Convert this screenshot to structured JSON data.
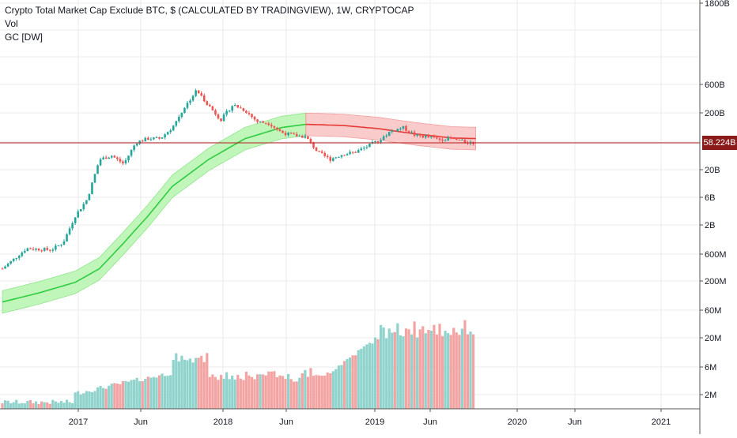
{
  "legend": {
    "title": "Crypto Total Market Cap Exclude BTC, $ (CALCULATED BY TRADINGVIEW), 1W, CRYPTOCAP",
    "vol": "Vol",
    "gc": "GC [DW]"
  },
  "price_label": "58.224B",
  "colors": {
    "up": "#26a69a",
    "down": "#ef5350",
    "vol_up": "#8fd3cc",
    "vol_down": "#f4a3a3",
    "band_green_fill": "#b7f5b0",
    "band_green_line": "#2ecc40",
    "band_red_fill": "#f9c2c2",
    "band_red_line": "#e53935",
    "price_line": "#b71c1c",
    "grid": "#ebebeb"
  },
  "chart_data": {
    "type": "candlestick",
    "title": "Crypto Total Market Cap Exclude BTC, $ (CALCULATED BY TRADINGVIEW), 1W, CRYPTOCAP",
    "y_scale": "log",
    "x_ticks": [
      "2017",
      "Jun",
      "2018",
      "Jun",
      "2019",
      "Jun",
      "2020",
      "Jun",
      "2021"
    ],
    "price_axis_ticks": [
      "1800B",
      "600B",
      "200B",
      "60B",
      "20B",
      "6B",
      "2B",
      "600M",
      "200M"
    ],
    "volume_axis_ticks": [
      "60M",
      "20M",
      "6M",
      "2M"
    ],
    "last_price": "58.224B",
    "close_series": [
      {
        "x": "2016-09",
        "y": 0.35
      },
      {
        "x": "2016-11",
        "y": 0.8
      },
      {
        "x": "2017-01",
        "y": 0.75
      },
      {
        "x": "2017-02",
        "y": 1.0
      },
      {
        "x": "2017-03",
        "y": 3.0
      },
      {
        "x": "2017-04",
        "y": 6.0
      },
      {
        "x": "2017-05",
        "y": 30
      },
      {
        "x": "2017-06",
        "y": 35
      },
      {
        "x": "2017-07",
        "y": 25
      },
      {
        "x": "2017-08",
        "y": 60
      },
      {
        "x": "2017-09",
        "y": 70
      },
      {
        "x": "2017-10",
        "y": 70
      },
      {
        "x": "2017-11",
        "y": 110
      },
      {
        "x": "2017-12",
        "y": 250
      },
      {
        "x": "2018-01",
        "y": 500
      },
      {
        "x": "2018-02",
        "y": 270
      },
      {
        "x": "2018-03",
        "y": 150
      },
      {
        "x": "2018-04",
        "y": 280
      },
      {
        "x": "2018-05",
        "y": 220
      },
      {
        "x": "2018-06",
        "y": 140
      },
      {
        "x": "2018-07",
        "y": 130
      },
      {
        "x": "2018-08",
        "y": 90
      },
      {
        "x": "2018-09",
        "y": 80
      },
      {
        "x": "2018-10",
        "y": 75
      },
      {
        "x": "2018-11",
        "y": 40
      },
      {
        "x": "2018-12",
        "y": 30
      },
      {
        "x": "2019-01",
        "y": 37
      },
      {
        "x": "2019-02",
        "y": 40
      },
      {
        "x": "2019-03",
        "y": 50
      },
      {
        "x": "2019-04",
        "y": 65
      },
      {
        "x": "2019-05",
        "y": 95
      },
      {
        "x": "2019-06",
        "y": 110
      },
      {
        "x": "2019-07",
        "y": 80
      },
      {
        "x": "2019-08",
        "y": 75
      },
      {
        "x": "2019-09",
        "y": 68
      },
      {
        "x": "2019-10",
        "y": 70
      },
      {
        "x": "2019-11",
        "y": 62
      },
      {
        "x": "2019-12",
        "y": 58.224
      }
    ],
    "gc_band_center": [
      {
        "x": "2016-09",
        "y": 0.09
      },
      {
        "x": "2016-12",
        "y": 0.13
      },
      {
        "x": "2017-03",
        "y": 0.2
      },
      {
        "x": "2017-05",
        "y": 0.35
      },
      {
        "x": "2017-07",
        "y": 1.0
      },
      {
        "x": "2017-09",
        "y": 3.0
      },
      {
        "x": "2017-11",
        "y": 10
      },
      {
        "x": "2018-02",
        "y": 30
      },
      {
        "x": "2018-05",
        "y": 70
      },
      {
        "x": "2018-08",
        "y": 110
      },
      {
        "x": "2018-10",
        "y": 125
      },
      {
        "x": "2019-01",
        "y": 120
      },
      {
        "x": "2019-04",
        "y": 105
      },
      {
        "x": "2019-07",
        "y": 85
      },
      {
        "x": "2019-10",
        "y": 72
      },
      {
        "x": "2019-12",
        "y": 70
      }
    ]
  }
}
